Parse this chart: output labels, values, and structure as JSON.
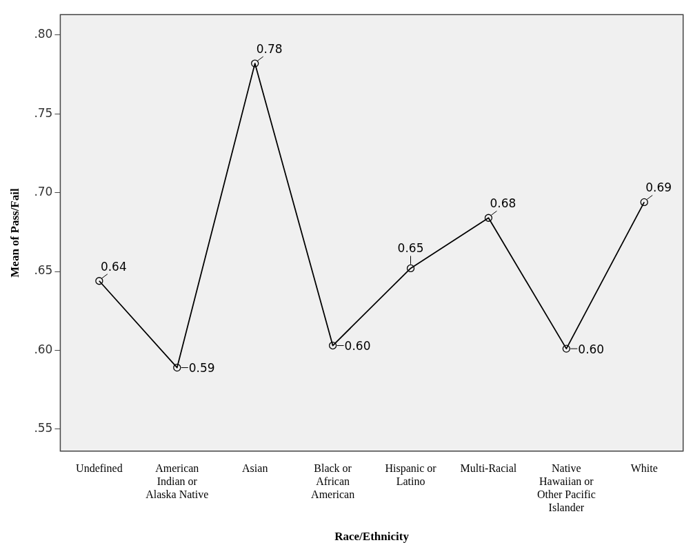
{
  "chart_data": {
    "type": "line",
    "xlabel": "Race/Ethnicity",
    "ylabel": "Mean of Pass/Fail",
    "categories": [
      "Undefined",
      "American Indian or Alaska Native",
      "Asian",
      "Black or African American",
      "Hispanic or Latino",
      "Multi-Racial",
      "Native Hawaiian or Other Pacific Islander",
      "White"
    ],
    "series": [
      {
        "color": "#000000",
        "values": [
          0.644,
          0.589,
          0.782,
          0.603,
          0.652,
          0.684,
          0.601,
          0.694
        ],
        "value_labels": [
          "0.64",
          "0.59",
          "0.78",
          "0.60",
          "0.65",
          "0.68",
          "0.60",
          "0.69"
        ]
      }
    ],
    "ylim": [
      0.536,
      0.813
    ],
    "yticks": [
      {
        "value": 0.55,
        "label": ".55"
      },
      {
        "value": 0.6,
        "label": ".60"
      },
      {
        "value": 0.65,
        "label": ".65"
      },
      {
        "value": 0.7,
        "label": ".70"
      },
      {
        "value": 0.75,
        "label": ".75"
      },
      {
        "value": 0.8,
        "label": ".80"
      }
    ],
    "marker": "circle",
    "line_style": "solid",
    "grid": false,
    "legend": false
  }
}
